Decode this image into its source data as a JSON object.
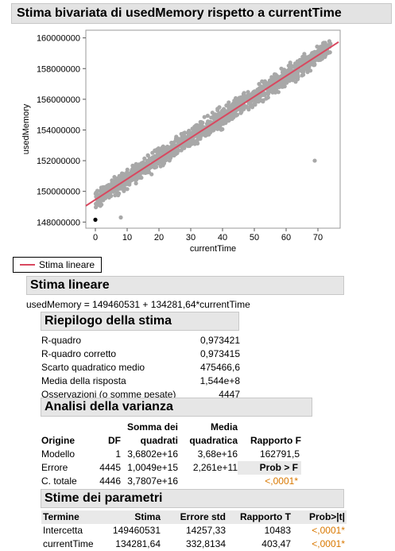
{
  "title": "Stima bivariata di usedMemory rispetto a currentTime",
  "chart_data": {
    "type": "scatter",
    "xlabel": "currentTime",
    "ylabel": "usedMemory",
    "xlim": [
      -3,
      77
    ],
    "ylim": [
      147600000,
      160500000
    ],
    "x_ticks": [
      0,
      10,
      20,
      30,
      40,
      50,
      60,
      70
    ],
    "y_ticks": [
      148000000,
      150000000,
      152000000,
      154000000,
      156000000,
      158000000,
      160000000
    ],
    "x_tick_labels": [
      "0",
      "10",
      "20",
      "30",
      "40",
      "50",
      "60",
      "70"
    ],
    "y_tick_labels": [
      "148000000",
      "150000000",
      "152000000",
      "154000000",
      "156000000",
      "158000000",
      "160000000"
    ],
    "point_color": "#a8a8a8",
    "fit_line_color": "#d9485f",
    "fit": {
      "intercept": 149460531,
      "slope": 134281.64,
      "x_range": [
        -3,
        76.5
      ]
    },
    "band": {
      "x_range": [
        0,
        74
      ],
      "half_width_y": 900000
    },
    "outliers": [
      {
        "x": 0,
        "y": 148150000,
        "color": "#000000"
      },
      {
        "x": 69,
        "y": 152000000,
        "color": "#a8a8a8"
      },
      {
        "x": 8,
        "y": 148300000,
        "color": "#a8a8a8"
      }
    ]
  },
  "legend": {
    "label": "Stima lineare",
    "color": "#d9485f"
  },
  "linear": {
    "title": "Stima lineare",
    "equation": "usedMemory = 149460531 + 134281,64*currentTime"
  },
  "summary": {
    "title": "Riepilogo della stima",
    "rows": [
      {
        "label": "R-quadro",
        "value": "0,973421"
      },
      {
        "label": "R-quadro corretto",
        "value": "0,973415"
      },
      {
        "label": "Scarto quadratico medio",
        "value": "475466,6"
      },
      {
        "label": "Media della risposta",
        "value": "1,544e+8"
      },
      {
        "label": "Osservazioni (o somme pesate)",
        "value": "4447"
      }
    ]
  },
  "anova": {
    "title": "Analisi della varianza",
    "headers": {
      "source": "Origine",
      "df": "DF",
      "ss_top": "Somma dei",
      "ss_bottom": "quadrati",
      "ms_top": "Media",
      "ms_bottom": "quadratica",
      "f": "Rapporto F"
    },
    "rows": [
      {
        "source": "Modello",
        "df": "1",
        "ss": "3,6802e+16",
        "ms": "3,68e+16",
        "f": "162791,5"
      },
      {
        "source": "Errore",
        "df": "4445",
        "ss": "1,0049e+15",
        "ms": "2,261e+11",
        "f": "Prob > F"
      },
      {
        "source": "C. totale",
        "df": "4446",
        "ss": "3,7807e+16",
        "ms": "",
        "f": "<,0001*"
      }
    ]
  },
  "params": {
    "title": "Stime dei parametri",
    "headers": {
      "term": "Termine",
      "estimate": "Stima",
      "stderr": "Errore std",
      "t": "Rapporto T",
      "p": "Prob>|t|"
    },
    "rows": [
      {
        "term": "Intercetta",
        "estimate": "149460531",
        "stderr": "14257,33",
        "t": "10483",
        "p": "<,0001*"
      },
      {
        "term": "currentTime",
        "estimate": "134281,64",
        "stderr": "332,8134",
        "t": "403,47",
        "p": "<,0001*"
      }
    ]
  }
}
